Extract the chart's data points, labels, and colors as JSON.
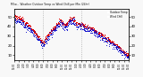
{
  "title": "Milw... Weather Outdoor Temp vs Wind Chill per Min (24hr)",
  "legend_outdoor": "Outdoor Temp",
  "legend_windchill": "Wind Chill",
  "outdoor_color": "#dd0000",
  "windchill_color": "#0000cc",
  "bg_color": "#f8f8f8",
  "ylim": [
    5,
    58
  ],
  "yticks": [
    10,
    20,
    30,
    40,
    50
  ],
  "vline1": 360,
  "vline2": 840,
  "n_points": 1440,
  "seed": 7,
  "noise_scale": 1.2,
  "wc_noise": 1.5
}
